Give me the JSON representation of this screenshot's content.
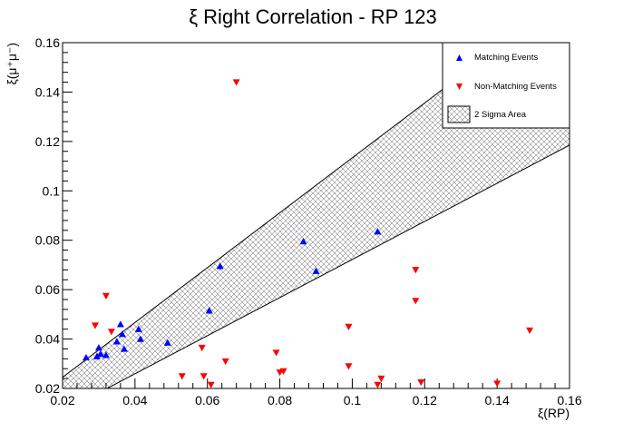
{
  "chart_data": {
    "type": "scatter",
    "title": "ξ Right Correlation - RP 123",
    "xlabel": "ξ(RP)",
    "ylabel": "ξ(μ⁺μ⁻)",
    "xlim": [
      0.02,
      0.16
    ],
    "ylim": [
      0.02,
      0.16
    ],
    "x_ticks": [
      "0.02",
      "0.04",
      "0.06",
      "0.08",
      "0.1",
      "0.12",
      "0.14",
      "0.16"
    ],
    "y_ticks": [
      "0.02",
      "0.04",
      "0.06",
      "0.08",
      "0.1",
      "0.12",
      "0.14",
      "0.16"
    ],
    "legend_position": "top-right",
    "band": {
      "name": "2 Sigma Area",
      "upper": [
        [
          0.02,
          0.0245
        ],
        [
          0.16,
          0.18
        ]
      ],
      "lower": [
        [
          0.02,
          0.0105
        ],
        [
          0.16,
          0.1185
        ]
      ]
    },
    "series": [
      {
        "name": "Matching Events",
        "marker": "triangle-up",
        "color": "#0000ff",
        "points": [
          [
            0.0265,
            0.0325
          ],
          [
            0.0295,
            0.033
          ],
          [
            0.03,
            0.0365
          ],
          [
            0.0305,
            0.034
          ],
          [
            0.032,
            0.0335
          ],
          [
            0.035,
            0.039
          ],
          [
            0.036,
            0.046
          ],
          [
            0.0365,
            0.042
          ],
          [
            0.037,
            0.036
          ],
          [
            0.041,
            0.044
          ],
          [
            0.0415,
            0.04
          ],
          [
            0.049,
            0.0385
          ],
          [
            0.0605,
            0.0515
          ],
          [
            0.0635,
            0.0695
          ],
          [
            0.0865,
            0.0795
          ],
          [
            0.09,
            0.0675
          ],
          [
            0.107,
            0.0835
          ]
        ]
      },
      {
        "name": "Non-Matching Events",
        "marker": "triangle-down",
        "color": "#ff0000",
        "points": [
          [
            0.029,
            0.0455
          ],
          [
            0.032,
            0.0575
          ],
          [
            0.0335,
            0.043
          ],
          [
            0.053,
            0.025
          ],
          [
            0.0585,
            0.0365
          ],
          [
            0.059,
            0.025
          ],
          [
            0.061,
            0.0215
          ],
          [
            0.065,
            0.031
          ],
          [
            0.068,
            0.144
          ],
          [
            0.079,
            0.0345
          ],
          [
            0.08,
            0.0265
          ],
          [
            0.081,
            0.027
          ],
          [
            0.099,
            0.045
          ],
          [
            0.099,
            0.029
          ],
          [
            0.107,
            0.0215
          ],
          [
            0.108,
            0.024
          ],
          [
            0.1175,
            0.068
          ],
          [
            0.1175,
            0.0555
          ],
          [
            0.119,
            0.0225
          ],
          [
            0.14,
            0.022
          ],
          [
            0.149,
            0.0435
          ]
        ]
      }
    ]
  }
}
